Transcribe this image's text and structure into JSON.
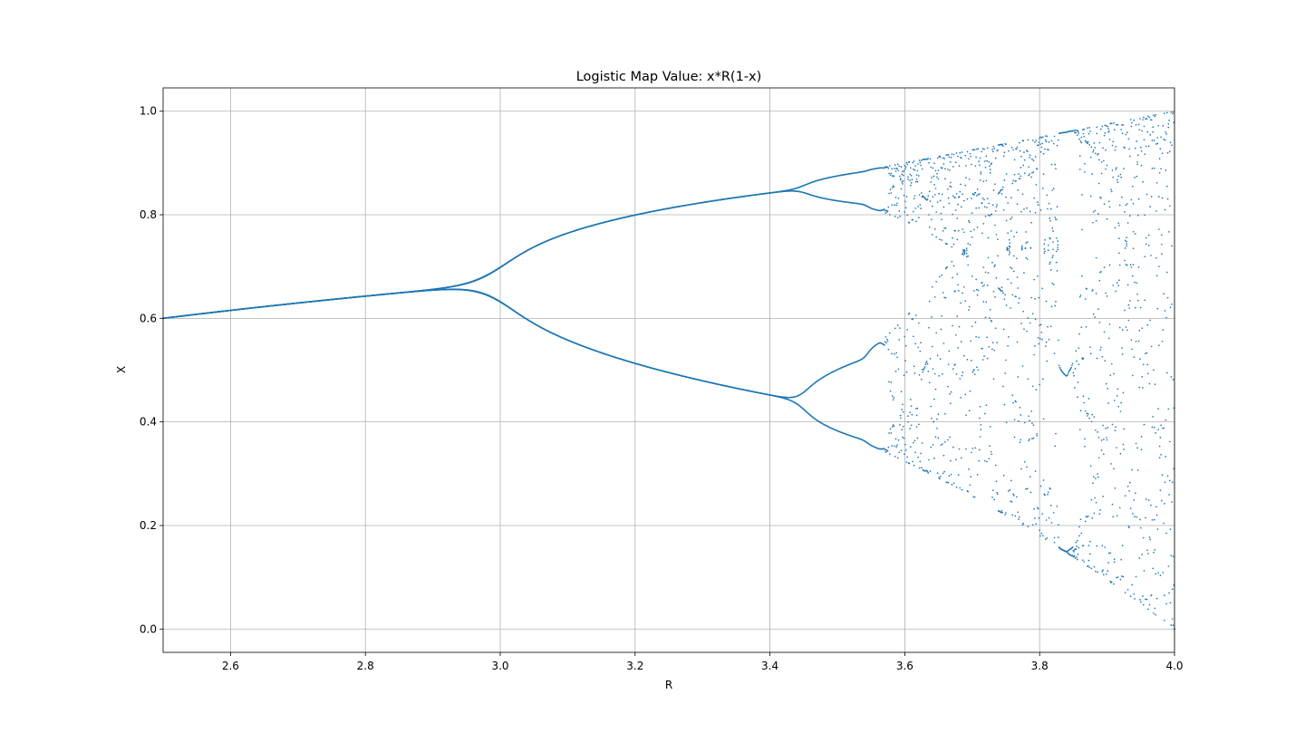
{
  "chart_data": {
    "type": "scatter",
    "title": "Logistic Map Value: x*R(1-x)",
    "xlabel": "R",
    "ylabel": "X",
    "xlim": [
      2.5,
      4.0
    ],
    "ylim": [
      -0.045,
      1.045
    ],
    "x_ticks": [
      "2.6",
      "2.8",
      "3.0",
      "3.2",
      "3.4",
      "3.6",
      "3.8",
      "4.0"
    ],
    "y_ticks": [
      "0.0",
      "0.2",
      "0.4",
      "0.6",
      "0.8",
      "1.0"
    ],
    "grid": true,
    "legend": "none",
    "series": [
      {
        "color": "#1f77b4",
        "marker": "point",
        "generator": {
          "map": "x*R(1-x)",
          "r_start": 2.5,
          "r_end": 4.0,
          "r_count": 1500,
          "x0": 0.5,
          "warmup_iterations": 40,
          "sampled_iterations": 4
        }
      }
    ]
  }
}
